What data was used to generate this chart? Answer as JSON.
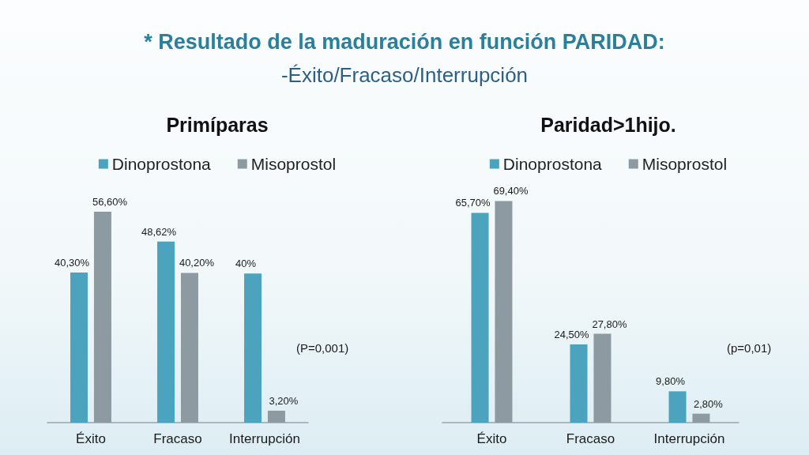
{
  "chart_data": [
    {
      "type": "other",
      "title": "* Resultado de la maduración en función PARIDAD:",
      "subtitle": "-Éxito/Fracaso/Interrupción"
    },
    {
      "type": "bar",
      "title": "Primíparas",
      "categories": [
        "Éxito",
        "Fracaso",
        "Interrupción"
      ],
      "series": [
        {
          "name": "Dinoprostona",
          "color": "#4ba3be",
          "values": [
            40.3,
            48.62,
            40
          ],
          "value_labels": [
            "40,30%",
            "48,62%",
            "40%"
          ]
        },
        {
          "name": "Misoprostol",
          "color": "#8d9aa2",
          "values": [
            56.6,
            40.2,
            3.2
          ],
          "value_labels": [
            "56,60%",
            "40,20%",
            "3,20%"
          ]
        }
      ],
      "legend": "top",
      "annotations": [
        "(P=0,001)"
      ]
    },
    {
      "type": "bar",
      "title": "Paridad>1hijo.",
      "categories": [
        "Éxito",
        "Fracaso",
        "Interrupción"
      ],
      "series": [
        {
          "name": "Dinoprostona",
          "color": "#4ba3be",
          "values": [
            65.7,
            24.5,
            9.8
          ],
          "value_labels": [
            "65,70%",
            "24,50%",
            "9,80%"
          ]
        },
        {
          "name": "Misoprostol",
          "color": "#8d9aa2",
          "values": [
            69.4,
            27.8,
            2.8
          ],
          "value_labels": [
            "69,40%",
            "27,80%",
            "2,80%"
          ]
        }
      ],
      "legend": "top",
      "annotations": [
        "(p=0,01)"
      ]
    }
  ]
}
